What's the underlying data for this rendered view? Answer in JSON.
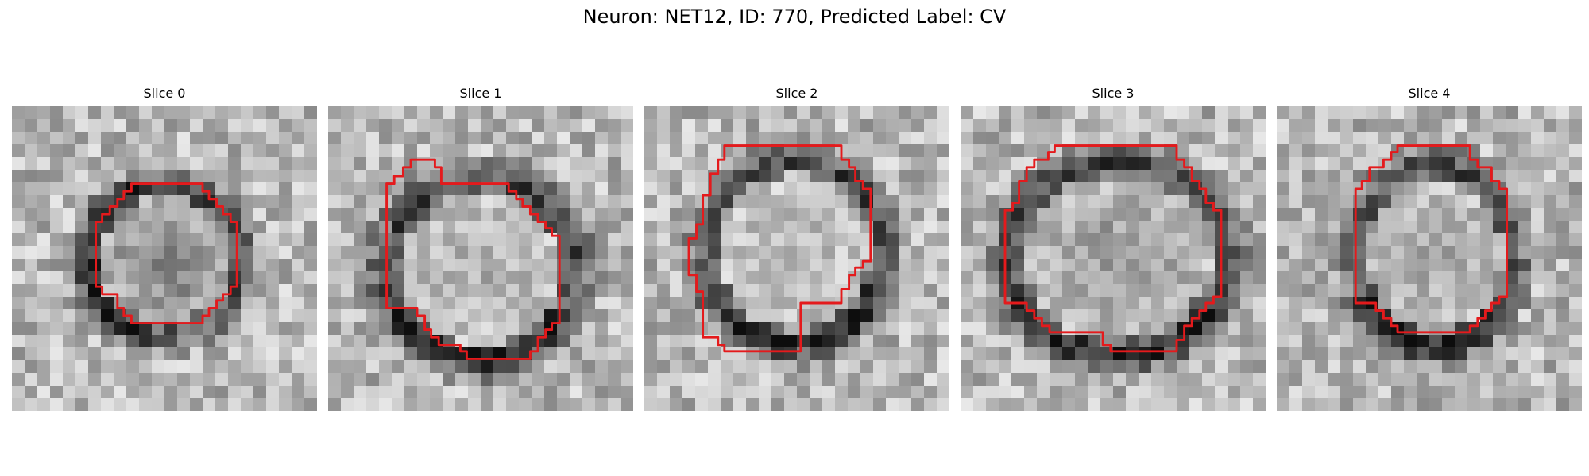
{
  "figure": {
    "title": "Neuron: NET12, ID: 770, Predicted Label: CV"
  },
  "panels": [
    {
      "title": "Slice 0"
    },
    {
      "title": "Slice 1"
    },
    {
      "title": "Slice 2"
    },
    {
      "title": "Slice 3"
    },
    {
      "title": "Slice 4"
    }
  ],
  "colors": {
    "contour": "#e41a1c",
    "background": "#ffffff"
  }
}
